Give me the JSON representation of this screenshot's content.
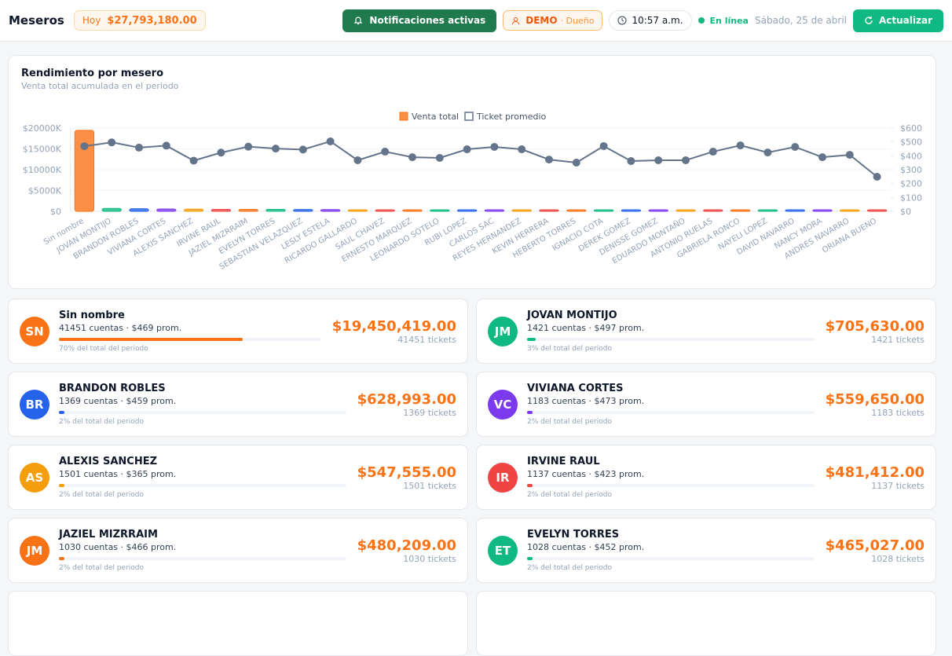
{
  "header": {
    "title": "Meseros",
    "today_label": "Hoy",
    "today_amount": "$27,793,180.00",
    "notifications": "Notificaciones activas",
    "user": "DEMO",
    "role": "· Dueño",
    "time": "10:57 a.m.",
    "status": "En línea",
    "date": "Sábado, 25 de abril",
    "refresh": "Actualizar"
  },
  "chart_data": {
    "type": "bar-line",
    "title": "Rendimiento por mesero",
    "subtitle": "Venta total acumulada en el periodo",
    "categories": [
      "Sin nombre",
      "JOVAN MONTIJO",
      "BRANDON ROBLES",
      "VIVIANA CORTES",
      "ALEXIS SANCHEZ",
      "IRVINE RAUL",
      "JAZIEL MIZRRAIM",
      "EVELYN TORRES",
      "SEBASTIAN VELAZQUEZ",
      "LESLY ESTELA",
      "RICARDO GALLARDO",
      "SAUL CHAVEZ",
      "ERNESTO MARQUEZ",
      "LEONARDO SOTELO",
      "RUBI LOPEZ",
      "CARLOS SAC",
      "REYES HERNANDEZ",
      "KEVIN HERRERA",
      "HEBERTO TORRES",
      "IGNACIO COTA",
      "DEREK GOMEZ",
      "DENISSE GOMEZ",
      "EDUARDO MONTAÑO",
      "ANTONIO RUELAS",
      "GABRIELA RONCO",
      "NAYELI LOPEZ",
      "DAVID NAVARRO",
      "NANCY MORA",
      "ANDRES NAVARRO",
      "ORIANA BUENO"
    ],
    "palette": [
      "#f97316",
      "#10b981",
      "#2563eb",
      "#7c3aed",
      "#f59e0b",
      "#ef4444"
    ],
    "series": [
      {
        "name": "Venta total",
        "type": "bar",
        "color": "#f97316",
        "values": [
          19450419,
          705630,
          628993,
          559650,
          547555,
          481412,
          480209,
          465027,
          440000,
          420000,
          380000,
          330000,
          300000,
          280000,
          260000,
          240000,
          200000,
          170000,
          150000,
          130000,
          100000,
          80000,
          60000,
          50000,
          40000,
          30000,
          20000,
          15000,
          10000,
          5000
        ]
      },
      {
        "name": "Ticket promedio",
        "type": "line",
        "axis": "y2",
        "color": "#64748b",
        "values": [
          469,
          497,
          459,
          473,
          365,
          423,
          466,
          452,
          445,
          504,
          368,
          430,
          390,
          385,
          447,
          464,
          447,
          373,
          351,
          470,
          362,
          368,
          368,
          430,
          475,
          424,
          464,
          390,
          407,
          249
        ]
      }
    ],
    "ylim": [
      0,
      20000000
    ],
    "yticks": [
      {
        "value": 0,
        "label": "$0"
      },
      {
        "value": 5000000,
        "label": "$5000K"
      },
      {
        "value": 10000000,
        "label": "$10000K"
      },
      {
        "value": 15000000,
        "label": "$15000K"
      },
      {
        "value": 20000000,
        "label": "$20000K"
      }
    ],
    "y2lim": [
      0,
      600
    ],
    "y2ticks": [
      {
        "value": 0,
        "label": "$0"
      },
      {
        "value": 100,
        "label": "$100"
      },
      {
        "value": 200,
        "label": "$200"
      },
      {
        "value": 300,
        "label": "$300"
      },
      {
        "value": 400,
        "label": "$400"
      },
      {
        "value": 500,
        "label": "$500"
      },
      {
        "value": 600,
        "label": "$600"
      }
    ],
    "grid": true,
    "legend": "top"
  },
  "cards": [
    {
      "initials": "SN",
      "name": "Sin nombre",
      "detail": "41451 cuentas · $469 prom.",
      "share": 70,
      "share_text": "70% del total del periodo",
      "amount": "$19,450,419.00",
      "tickets": "41451 tickets"
    },
    {
      "initials": "JM",
      "name": "JOVAN MONTIJO",
      "detail": "1421 cuentas · $497 prom.",
      "share": 3,
      "share_text": "3% del total del periodo",
      "amount": "$705,630.00",
      "tickets": "1421 tickets"
    },
    {
      "initials": "BR",
      "name": "BRANDON ROBLES",
      "detail": "1369 cuentas · $459 prom.",
      "share": 2,
      "share_text": "2% del total del periodo",
      "amount": "$628,993.00",
      "tickets": "1369 tickets"
    },
    {
      "initials": "VC",
      "name": "VIVIANA CORTES",
      "detail": "1183 cuentas · $473 prom.",
      "share": 2,
      "share_text": "2% del total del periodo",
      "amount": "$559,650.00",
      "tickets": "1183 tickets"
    },
    {
      "initials": "AS",
      "name": "ALEXIS SANCHEZ",
      "detail": "1501 cuentas · $365 prom.",
      "share": 2,
      "share_text": "2% del total del periodo",
      "amount": "$547,555.00",
      "tickets": "1501 tickets"
    },
    {
      "initials": "IR",
      "name": "IRVINE RAUL",
      "detail": "1137 cuentas · $423 prom.",
      "share": 2,
      "share_text": "2% del total del periodo",
      "amount": "$481,412.00",
      "tickets": "1137 tickets"
    },
    {
      "initials": "JM",
      "name": "JAZIEL MIZRRAIM",
      "detail": "1030 cuentas · $466 prom.",
      "share": 2,
      "share_text": "2% del total del periodo",
      "amount": "$480,209.00",
      "tickets": "1030 tickets"
    },
    {
      "initials": "ET",
      "name": "EVELYN TORRES",
      "detail": "1028 cuentas · $452 prom.",
      "share": 2,
      "share_text": "2% del total del periodo",
      "amount": "$465,027.00",
      "tickets": "1028 tickets"
    }
  ]
}
